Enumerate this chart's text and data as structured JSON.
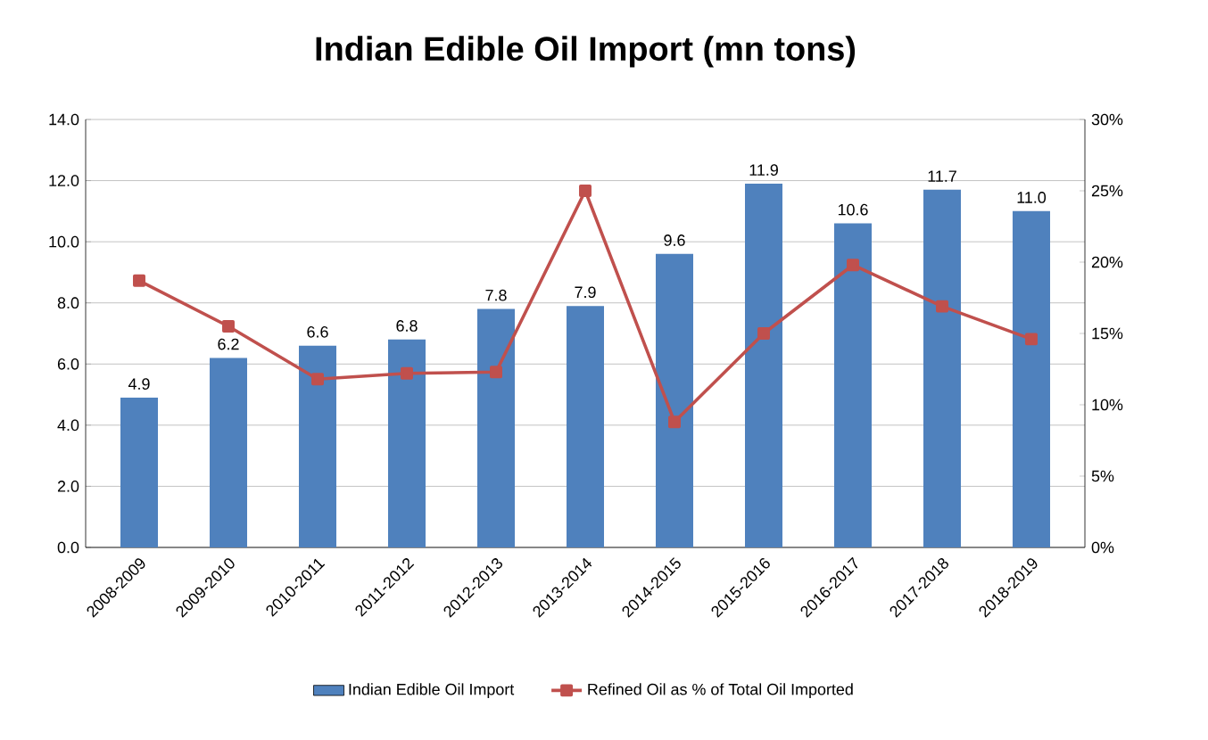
{
  "chart_data": {
    "type": "bar",
    "title": "Indian Edible Oil Import (mn tons)",
    "categories": [
      "2008-2009",
      "2009-2010",
      "2010-2011",
      "2011-2012",
      "2012-2013",
      "2013-2014",
      "2014-2015",
      "2015-2016",
      "2016-2017",
      "2017-2018",
      "2018-2019"
    ],
    "series": [
      {
        "name": "Indian Edible Oil Import",
        "color": "#4f81bd",
        "values": [
          4.9,
          6.2,
          6.6,
          6.8,
          7.8,
          7.9,
          9.6,
          11.9,
          10.6,
          11.7,
          11.0
        ],
        "value_labels": [
          "4.9",
          "6.2",
          "6.6",
          "6.8",
          "7.8",
          "7.9",
          "9.6",
          "11.9",
          "10.6",
          "11.7",
          "11.0"
        ]
      },
      {
        "name": "Refined Oil as % of Total Oil Imported",
        "type": "line",
        "axis": "y2",
        "color": "#c0504d",
        "marker": "square",
        "values": [
          18.7,
          15.5,
          11.8,
          12.2,
          12.3,
          25.0,
          8.8,
          15.0,
          19.8,
          16.9,
          14.6
        ]
      }
    ],
    "ylim": [
      0,
      14
    ],
    "yticks": [
      {
        "value": 0,
        "label": "0.0"
      },
      {
        "value": 2,
        "label": "2.0"
      },
      {
        "value": 4,
        "label": "4.0"
      },
      {
        "value": 6,
        "label": "6.0"
      },
      {
        "value": 8,
        "label": "8.0"
      },
      {
        "value": 10,
        "label": "10.0"
      },
      {
        "value": 12,
        "label": "12.0"
      },
      {
        "value": 14,
        "label": "14.0"
      }
    ],
    "y2lim": [
      0,
      30
    ],
    "y2ticks": [
      {
        "value": 0,
        "label": "0%"
      },
      {
        "value": 5,
        "label": "5%"
      },
      {
        "value": 10,
        "label": "10%"
      },
      {
        "value": 15,
        "label": "15%"
      },
      {
        "value": 20,
        "label": "20%"
      },
      {
        "value": 25,
        "label": "25%"
      },
      {
        "value": 30,
        "label": "30%"
      }
    ],
    "grid": "y",
    "legend": "bottom"
  }
}
